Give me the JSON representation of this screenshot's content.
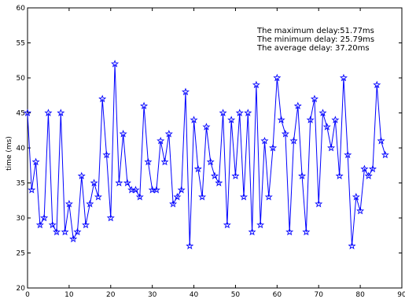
{
  "chart_data": {
    "type": "line",
    "title": "",
    "xlabel": "",
    "ylabel": "time (ms)",
    "xlim": [
      0,
      90
    ],
    "ylim": [
      20,
      60
    ],
    "xticks": [
      0,
      10,
      20,
      30,
      40,
      50,
      60,
      70,
      80,
      90
    ],
    "yticks": [
      20,
      25,
      30,
      35,
      40,
      45,
      50,
      55,
      60
    ],
    "grid": false,
    "colors": {
      "series": "#0000ff",
      "axes": "#000000"
    },
    "marker": "star",
    "annotations": [
      "The maximum delay:51.77ms",
      "The minimum delay: 25.79ms",
      "The average delay:  37.20ms"
    ],
    "series": [
      {
        "x": [
          0,
          1,
          2,
          3,
          4,
          5,
          6,
          7,
          8,
          9,
          10,
          11,
          12,
          13,
          14,
          15,
          16,
          17,
          18,
          19,
          20,
          21,
          22,
          23,
          24,
          25,
          26,
          27,
          28,
          29,
          30,
          31,
          32,
          33,
          34,
          35,
          36,
          37,
          38,
          39,
          40,
          41,
          42,
          43,
          44,
          45,
          46,
          47,
          48,
          49,
          50,
          51,
          52,
          53,
          54,
          55,
          56,
          57,
          58,
          59,
          60,
          61,
          62,
          63,
          64,
          65,
          66,
          67,
          68,
          69,
          70,
          71,
          72,
          73,
          74,
          75,
          76,
          77,
          78,
          79,
          80,
          81,
          82,
          83,
          84,
          85,
          86
        ],
        "values": [
          45,
          34,
          38,
          29,
          30,
          45,
          29,
          28,
          45,
          28,
          32,
          27,
          28,
          36,
          29,
          32,
          35,
          33,
          47,
          39,
          30,
          52,
          35,
          42,
          35,
          34,
          34,
          33,
          46,
          38,
          34,
          34,
          41,
          38,
          42,
          32,
          33,
          34,
          48,
          26,
          44,
          37,
          33,
          43,
          38,
          36,
          35,
          45,
          29,
          44,
          36,
          45,
          33,
          45,
          28,
          49,
          29,
          41,
          33,
          40,
          50,
          44,
          42,
          28,
          41,
          46,
          36,
          28,
          44,
          47,
          32,
          45,
          43,
          40,
          44,
          36,
          50,
          39,
          26,
          33,
          31,
          37,
          36,
          37,
          49,
          41,
          39
        ]
      }
    ]
  }
}
